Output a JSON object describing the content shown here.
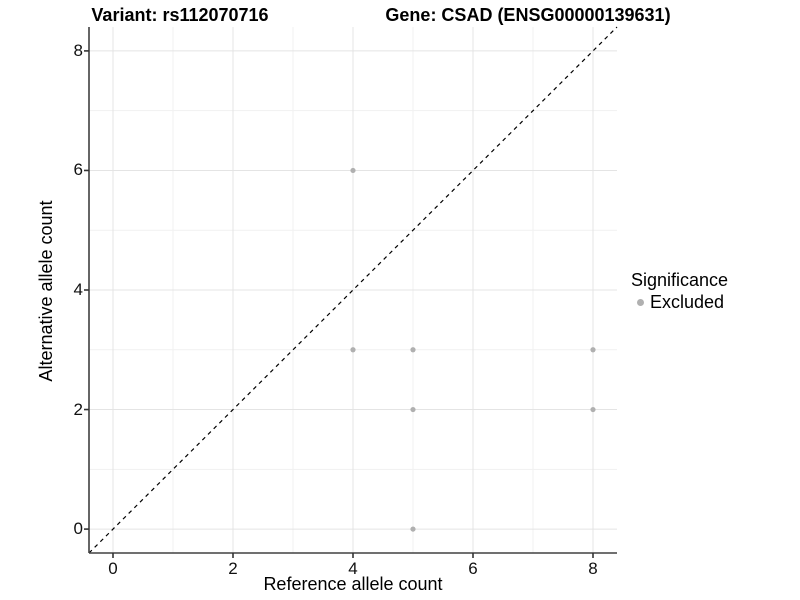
{
  "header": {
    "title_left": "Variant: rs112070716",
    "title_right": "Gene: CSAD (ENSG00000139631)"
  },
  "chart_data": {
    "type": "scatter",
    "title": "Variant: rs112070716 | Gene: CSAD (ENSG00000139631)",
    "xlabel": "Reference allele count",
    "ylabel": "Alternative allele count",
    "xlim": [
      -0.4,
      8.4
    ],
    "ylim": [
      -0.4,
      8.4
    ],
    "x_major_ticks": [
      0,
      2,
      4,
      6,
      8
    ],
    "y_major_ticks": [
      0,
      2,
      4,
      6,
      8
    ],
    "x_minor_gridlines": [
      1,
      3,
      5,
      7
    ],
    "y_minor_gridlines": [
      1,
      3,
      5,
      7
    ],
    "x_tick_labels": [
      "0",
      "2",
      "4",
      "6",
      "8"
    ],
    "y_tick_labels": [
      "0",
      "2",
      "4",
      "6",
      "8"
    ],
    "grid": true,
    "reference_line": {
      "type": "identity",
      "style": "dashed",
      "from": [
        -0.4,
        -0.4
      ],
      "to": [
        8.4,
        8.4
      ],
      "color": "#000000"
    },
    "series": [
      {
        "name": "Excluded",
        "color": "#b0b0b0",
        "points": [
          [
            4,
            6
          ],
          [
            4,
            3
          ],
          [
            5,
            3
          ],
          [
            8,
            3
          ],
          [
            5,
            2
          ],
          [
            8,
            2
          ],
          [
            5,
            0
          ]
        ]
      }
    ],
    "legend": {
      "title": "Significance",
      "position": "right",
      "items": [
        {
          "label": "Excluded",
          "color": "#b0b0b0"
        }
      ]
    }
  },
  "colors": {
    "background": "#ffffff",
    "axis_line": "#404040",
    "tick_mark": "#333333",
    "grid_major": "#e4e4e4",
    "grid_minor": "#f1f1f1",
    "point": "#b0b0b0",
    "text": "#000000"
  }
}
